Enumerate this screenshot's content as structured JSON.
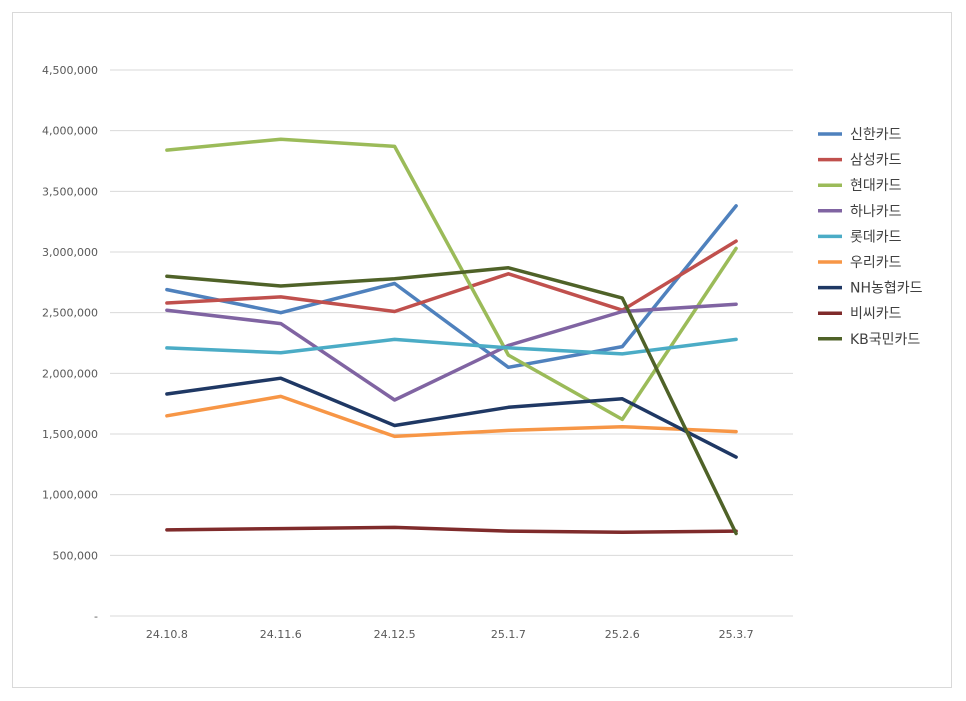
{
  "chart_data": {
    "type": "line",
    "title": "",
    "xlabel": "",
    "ylabel": "",
    "categories": [
      "24.10.8",
      "24.11.6",
      "24.12.5",
      "25.1.7",
      "25.2.6",
      "25.3.7"
    ],
    "ylim": [
      0,
      4500000
    ],
    "yticks": [
      {
        "value": 0,
        "label": "-"
      },
      {
        "value": 500000,
        "label": "500,000"
      },
      {
        "value": 1000000,
        "label": "1,000,000"
      },
      {
        "value": 1500000,
        "label": "1,500,000"
      },
      {
        "value": 2000000,
        "label": "2,000,000"
      },
      {
        "value": 2500000,
        "label": "2,500,000"
      },
      {
        "value": 3000000,
        "label": "3,000,000"
      },
      {
        "value": 3500000,
        "label": "3,500,000"
      },
      {
        "value": 4000000,
        "label": "4,000,000"
      },
      {
        "value": 4500000,
        "label": "4,500,000"
      }
    ],
    "grid": true,
    "legend_position": "right",
    "series": [
      {
        "name": "신한카드",
        "color": "#4f81bd",
        "values": [
          2690000,
          2500000,
          2740000,
          2050000,
          2220000,
          3380000
        ]
      },
      {
        "name": "삼성카드",
        "color": "#c0504d",
        "values": [
          2580000,
          2630000,
          2510000,
          2820000,
          2520000,
          3090000
        ]
      },
      {
        "name": "현대카드",
        "color": "#9bbb59",
        "values": [
          3840000,
          3930000,
          3870000,
          2150000,
          1620000,
          3030000
        ]
      },
      {
        "name": "하나카드",
        "color": "#8064a2",
        "values": [
          2520000,
          2410000,
          1780000,
          2230000,
          2510000,
          2570000
        ]
      },
      {
        "name": "롯데카드",
        "color": "#4bacc6",
        "values": [
          2210000,
          2170000,
          2280000,
          2210000,
          2160000,
          2280000
        ]
      },
      {
        "name": "우리카드",
        "color": "#f79646",
        "values": [
          1650000,
          1810000,
          1480000,
          1530000,
          1560000,
          1520000
        ]
      },
      {
        "name": "NH농협카드",
        "color": "#1f3864",
        "values": [
          1830000,
          1960000,
          1570000,
          1720000,
          1790000,
          1310000
        ]
      },
      {
        "name": "비씨카드",
        "color": "#7f2b2b",
        "values": [
          710000,
          720000,
          730000,
          700000,
          690000,
          700000
        ]
      },
      {
        "name": "KB국민카드",
        "color": "#4f6228",
        "values": [
          2800000,
          2720000,
          2780000,
          2870000,
          2620000,
          680000
        ]
      }
    ]
  }
}
